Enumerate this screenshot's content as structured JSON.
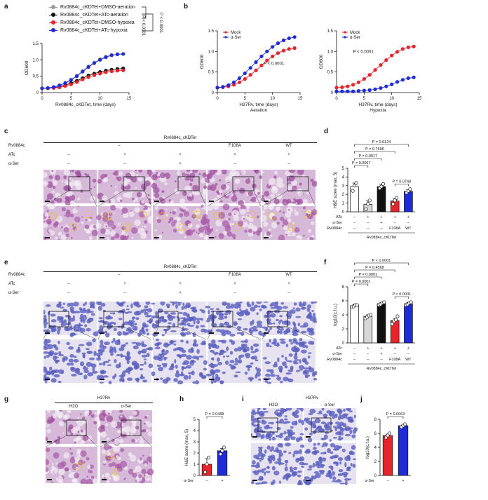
{
  "panels": {
    "a": "a",
    "b": "b",
    "c": "c",
    "d": "d",
    "e": "e",
    "f": "f",
    "g": "g",
    "h": "h",
    "i": "i",
    "j": "j"
  },
  "colors": {
    "grey": "#9a9a9a",
    "black": "#111111",
    "red": "#e8232b",
    "blue": "#1f2bd6",
    "he_pink": "#b06bb0",
    "ihc_blue": "#6b6fc7"
  },
  "legend_a": [
    {
      "label": "Rv0884c_cKDTet+DMSO-aeration",
      "color": "#9a9a9a"
    },
    {
      "label": "Rv0884c_cKDTet+ATc-aeration",
      "color": "#111111"
    },
    {
      "label": "Rv0884c_cKDTet+DMSO-hypoxia",
      "color": "#e8232b"
    },
    {
      "label": "Rv0884c_cKDTet+ATc-hypoxia",
      "color": "#1f2bd6"
    }
  ],
  "pvals_a": [
    "P < 0.0001",
    "P < 0.0001"
  ],
  "table_c": {
    "group_title": "Rv0884c_cKDTet",
    "rows": [
      "Rv0884c",
      "ATc",
      "α-Ser"
    ],
    "cols": [
      {
        "rv": "–",
        "atc": "–",
        "ser": "–"
      },
      {
        "rv": "",
        "atc": "+",
        "ser": "–"
      },
      {
        "rv": "",
        "atc": "+",
        "ser": "+"
      },
      {
        "rv": "F108A",
        "atc": "+",
        "ser": "–"
      },
      {
        "rv": "WT",
        "atc": "+",
        "ser": "–"
      }
    ]
  },
  "table_e": {
    "group_title": "Rv0884c_cKDTet",
    "rows": [
      "Rv0884c",
      "ATc",
      "α-Ser"
    ],
    "cols": [
      {
        "rv": "–",
        "atc": "–",
        "ser": "–"
      },
      {
        "rv": "",
        "atc": "+",
        "ser": "–"
      },
      {
        "rv": "",
        "atc": "+",
        "ser": "+"
      },
      {
        "rv": "F108A",
        "atc": "+",
        "ser": "–"
      },
      {
        "rv": "WT",
        "atc": "+",
        "ser": "–"
      }
    ]
  },
  "g_labels": {
    "title": "H37Rv",
    "left": "H2O",
    "right": "α-Ser"
  },
  "i_labels": {
    "title": "H37Rv",
    "left": "H2O",
    "right": "α-Ser"
  },
  "bar_axis_rows": {
    "d": {
      "atc": [
        "–",
        "+",
        "+",
        "+",
        "+"
      ],
      "ser": [
        "–",
        "–",
        "+",
        "–",
        "–"
      ],
      "rv": [
        "–",
        "–",
        "–",
        "F108A",
        "WT"
      ],
      "rowlabels": [
        "ATc",
        "α-Ser",
        "Rv0884c"
      ],
      "footer": "Rv0884c_cKDTet"
    },
    "f": {
      "atc": [
        "–",
        "+",
        "+",
        "+",
        "+"
      ],
      "ser": [
        "–",
        "–",
        "+",
        "–",
        "–"
      ],
      "rv": [
        "–",
        "–",
        "–",
        "F108A",
        "WT"
      ],
      "rowlabels": [
        "ATc",
        "α-Ser",
        "Rv0884c"
      ],
      "footer": "Rv0884c_cKDTet"
    },
    "h": {
      "ser": [
        "–",
        "+"
      ],
      "rowlabel": "α-Ser"
    },
    "j": {
      "ser": [
        "–",
        "+"
      ],
      "rowlabel": "α-Ser"
    }
  },
  "chart_data": [
    {
      "id": "a",
      "type": "line",
      "xlabel": "Rv0884c_cKDTet, time (days)",
      "ylabel": "OD600",
      "xlim": [
        0,
        15
      ],
      "ylim": [
        0,
        1.5
      ],
      "xticks": [
        "0",
        "5",
        "10",
        "15"
      ],
      "yticks": [
        "0",
        "0.5",
        "1.0",
        "1.5"
      ],
      "x": [
        0,
        1,
        2,
        3,
        4,
        5,
        6,
        7,
        8,
        9,
        10,
        11,
        12,
        13,
        14
      ],
      "series": [
        {
          "name": "Rv0884c_cKDTet+DMSO-aeration",
          "color": "#9a9a9a",
          "values": [
            0.13,
            0.14,
            0.17,
            0.22,
            0.3,
            0.4,
            0.52,
            0.66,
            0.8,
            0.92,
            1.02,
            1.1,
            1.15,
            1.17,
            1.18
          ]
        },
        {
          "name": "Rv0884c_cKDTet+ATc-aeration",
          "color": "#111111",
          "values": [
            0.13,
            0.13,
            0.15,
            0.18,
            0.23,
            0.29,
            0.36,
            0.44,
            0.52,
            0.58,
            0.63,
            0.67,
            0.7,
            0.72,
            0.74
          ]
        },
        {
          "name": "Rv0884c_cKDTet+DMSO-hypoxia",
          "color": "#e8232b",
          "values": [
            0.13,
            0.13,
            0.14,
            0.16,
            0.2,
            0.25,
            0.32,
            0.4,
            0.47,
            0.53,
            0.58,
            0.62,
            0.65,
            0.67,
            0.68
          ]
        },
        {
          "name": "Rv0884c_cKDTet+ATc-hypoxia",
          "color": "#1f2bd6",
          "values": [
            0.13,
            0.14,
            0.17,
            0.22,
            0.29,
            0.38,
            0.5,
            0.64,
            0.78,
            0.9,
            1.0,
            1.08,
            1.14,
            1.17,
            1.18
          ]
        }
      ]
    },
    {
      "id": "b1",
      "type": "line",
      "xlabel": "H37Rv, time (days)",
      "subtitle": "Aeration",
      "ylabel": "OD600",
      "xlim": [
        0,
        15
      ],
      "ylim": [
        0,
        1.5
      ],
      "xticks": [
        "0",
        "5",
        "10",
        "15"
      ],
      "yticks": [
        "0",
        "0.5",
        "1.0",
        "1.5"
      ],
      "legend": [
        "Mock",
        "α-Ser"
      ],
      "annotation": "P < 0.0001",
      "x": [
        0,
        1,
        2,
        3,
        4,
        5,
        6,
        7,
        8,
        9,
        10,
        11,
        12,
        13,
        14
      ],
      "series": [
        {
          "name": "Mock",
          "color": "#e8232b",
          "values": [
            0.12,
            0.13,
            0.15,
            0.19,
            0.25,
            0.33,
            0.43,
            0.54,
            0.66,
            0.78,
            0.88,
            0.96,
            1.02,
            1.06,
            1.08
          ]
        },
        {
          "name": "α-Ser",
          "color": "#1f2bd6",
          "values": [
            0.12,
            0.14,
            0.18,
            0.25,
            0.35,
            0.47,
            0.6,
            0.74,
            0.88,
            1.0,
            1.11,
            1.2,
            1.27,
            1.32,
            1.35
          ]
        }
      ]
    },
    {
      "id": "b2",
      "type": "line",
      "xlabel": "H37Rv, time (days)",
      "subtitle": "Hypoxia",
      "ylabel": "OD600",
      "xlim": [
        0,
        15
      ],
      "ylim": [
        0,
        1.5
      ],
      "xticks": [
        "0",
        "5",
        "10",
        "15"
      ],
      "yticks": [
        "0",
        "0.5",
        "1.0",
        "1.5"
      ],
      "legend": [
        "Mock",
        "α-Ser"
      ],
      "annotation": "P < 0.0001",
      "x": [
        0,
        1,
        2,
        3,
        4,
        5,
        6,
        7,
        8,
        9,
        10,
        11,
        12,
        13,
        14
      ],
      "series": [
        {
          "name": "Mock",
          "color": "#e8232b",
          "values": [
            0.12,
            0.13,
            0.15,
            0.19,
            0.25,
            0.33,
            0.43,
            0.55,
            0.67,
            0.79,
            0.9,
            0.99,
            1.06,
            1.1,
            1.12
          ]
        },
        {
          "name": "α-Ser",
          "color": "#1f2bd6",
          "values": [
            0.03,
            0.03,
            0.03,
            0.03,
            0.04,
            0.05,
            0.06,
            0.08,
            0.11,
            0.15,
            0.2,
            0.26,
            0.31,
            0.35,
            0.37
          ]
        }
      ]
    },
    {
      "id": "d",
      "type": "bar",
      "ylabel": "H&E score (max, 5)",
      "ylim": [
        0,
        5
      ],
      "yticks": [
        "0",
        "1",
        "2",
        "3",
        "4",
        "5"
      ],
      "values": [
        2.9,
        0.85,
        2.9,
        1.25,
        2.35
      ],
      "errors": [
        0.4,
        0.4,
        0.25,
        0.25,
        0.2
      ],
      "points": [
        [
          2.4,
          3.0,
          3.3
        ],
        [
          0.3,
          0.9,
          1.3
        ],
        [
          2.7,
          2.9,
          3.2
        ],
        [
          0.9,
          1.3,
          1.6
        ],
        [
          2.2,
          2.4,
          2.6
        ]
      ],
      "colors": [
        "#ffffff",
        "#d8d8d8",
        "#111111",
        "#e8232b",
        "#1f2bd6"
      ],
      "brackets": [
        {
          "a": 1,
          "b": 2,
          "label": "P = 0.0067"
        },
        {
          "a": 1,
          "b": 3,
          "label": "P = 0.0017"
        },
        {
          "a": 1,
          "b": 4,
          "label": "P = 0.7696"
        },
        {
          "a": 1,
          "b": 5,
          "label": "P = 0.0124"
        },
        {
          "a": 4,
          "b": 5,
          "label": "P = 0.0748"
        }
      ]
    },
    {
      "id": "f",
      "type": "bar",
      "ylabel": "log10(c.f.u.)",
      "ylim": [
        0,
        8
      ],
      "yticks": [
        "0",
        "2",
        "4",
        "6",
        "8"
      ],
      "values": [
        5.3,
        3.8,
        5.6,
        3.2,
        5.6
      ],
      "errors": [
        0.2,
        0.2,
        0.2,
        0.3,
        0.2
      ],
      "points": [
        [
          5.1,
          5.2,
          5.4,
          5.4
        ],
        [
          3.5,
          3.7,
          3.9,
          4.0
        ],
        [
          5.4,
          5.5,
          5.7,
          5.8
        ],
        [
          2.7,
          3.1,
          3.3,
          3.8
        ],
        [
          5.4,
          5.5,
          5.7,
          5.8
        ]
      ],
      "colors": [
        "#ffffff",
        "#d8d8d8",
        "#111111",
        "#e8232b",
        "#1f2bd6"
      ],
      "brackets": [
        {
          "a": 1,
          "b": 2,
          "label": "P = 0.0001"
        },
        {
          "a": 1,
          "b": 3,
          "label": "P = 0.0001"
        },
        {
          "a": 1,
          "b": 4,
          "label": "P = 0.4568"
        },
        {
          "a": 1,
          "b": 5,
          "label": "P < 0.0001"
        },
        {
          "a": 4,
          "b": 5,
          "label": "P < 0.0001"
        }
      ]
    },
    {
      "id": "h",
      "type": "bar",
      "ylabel": "H&E score (max, 5)",
      "ylim": [
        0,
        5
      ],
      "yticks": [
        "0",
        "1",
        "2",
        "3",
        "4",
        "5"
      ],
      "values": [
        1.0,
        2.2
      ],
      "errors": [
        0.5,
        0.2
      ],
      "points": [
        [
          0.3,
          1.0,
          1.6
        ],
        [
          1.9,
          2.2,
          2.5
        ]
      ],
      "colors": [
        "#e8232b",
        "#1f2bd6"
      ],
      "brackets": [
        {
          "a": 1,
          "b": 2,
          "label": "P = 0.0488"
        }
      ]
    },
    {
      "id": "j",
      "type": "bar",
      "ylabel": "log10(c.f.u.)",
      "ylim": [
        0,
        8
      ],
      "yticks": [
        "0",
        "2",
        "4",
        "6",
        "8"
      ],
      "values": [
        5.7,
        7.1
      ],
      "errors": [
        0.2,
        0.1
      ],
      "points": [
        [
          5.4,
          5.7,
          6.0
        ],
        [
          6.9,
          7.1,
          7.3
        ]
      ],
      "colors": [
        "#e8232b",
        "#1f2bd6"
      ],
      "brackets": [
        {
          "a": 1,
          "b": 2,
          "label": "P = 0.0063"
        }
      ]
    }
  ]
}
